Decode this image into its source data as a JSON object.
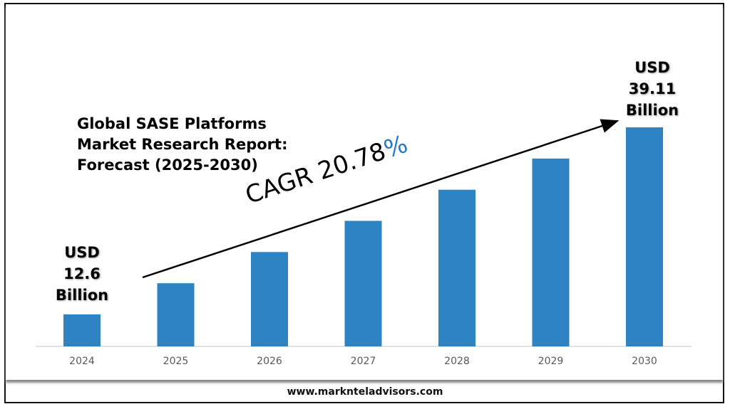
{
  "chart_data": {
    "type": "bar",
    "title": "Global SASE Platforms\nMarket Research Report:\nForecast (2025-2030)",
    "categories": [
      "2024",
      "2025",
      "2026",
      "2027",
      "2028",
      "2029",
      "2030"
    ],
    "values": [
      12.6,
      17.02,
      21.44,
      25.86,
      30.27,
      34.69,
      39.11
    ],
    "xlabel": "",
    "ylabel": "",
    "grid": false,
    "bar_color": "#2e83c3",
    "annotations": {
      "start_label": "USD\n12.6\nBillion",
      "end_label": "USD\n39.11\nBillion",
      "cagr_text": "CAGR 20.78",
      "cagr_symbol": "%",
      "cagr_symbol_color": "#1f7ac8"
    }
  },
  "footer": {
    "url": "www.marknteladvisors.com"
  }
}
